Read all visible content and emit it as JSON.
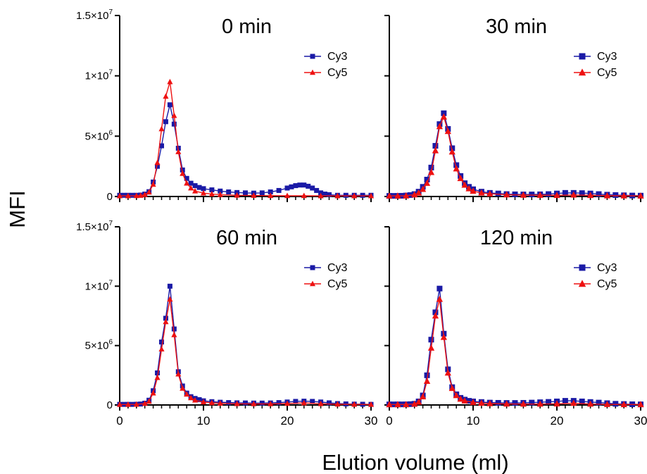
{
  "figure": {
    "ylabel": "MFI",
    "xlabel": "Elution volume (ml)"
  },
  "colors": {
    "cy3": "#1a1aa6",
    "cy5": "#ee1111",
    "axis": "#000000"
  },
  "chart_data": [
    {
      "type": "line",
      "panel": "top-left",
      "title": "0 min",
      "xlim": [
        0,
        30
      ],
      "ylim": [
        0,
        15000000
      ],
      "xticks": [
        "",
        "",
        "",
        ""
      ],
      "yticks": [
        "0",
        "5×10",
        "1×10",
        "1.5×10"
      ],
      "ytick_exponents": [
        "",
        "6",
        "7",
        "7"
      ],
      "legend": "top-right",
      "series": [
        {
          "name": "Cy3",
          "marker": "square",
          "x": [
            0,
            0.5,
            1,
            1.5,
            2,
            2.5,
            3,
            3.5,
            4,
            4.5,
            5,
            5.5,
            6,
            6.5,
            7,
            7.5,
            8,
            8.5,
            9,
            9.5,
            10,
            11,
            12,
            13,
            14,
            15,
            16,
            17,
            18,
            19,
            20,
            20.5,
            21,
            21.5,
            22,
            22.5,
            23,
            23.5,
            24,
            24.5,
            25,
            26,
            27,
            28,
            29,
            30
          ],
          "y": [
            100000,
            100000,
            100000,
            100000,
            100000,
            120000,
            200000,
            400000,
            1200000,
            2500000,
            4200000,
            6200000,
            7600000,
            6000000,
            4000000,
            2200000,
            1500000,
            1100000,
            900000,
            750000,
            650000,
            550000,
            450000,
            380000,
            330000,
            300000,
            280000,
            300000,
            380000,
            500000,
            700000,
            800000,
            900000,
            950000,
            950000,
            850000,
            700000,
            500000,
            300000,
            200000,
            150000,
            100000,
            100000,
            100000,
            100000,
            100000
          ]
        },
        {
          "name": "Cy5",
          "marker": "triangle",
          "x": [
            0,
            1,
            2,
            2.5,
            3,
            3.5,
            4,
            4.5,
            5,
            5.5,
            6,
            6.5,
            7,
            7.5,
            8,
            8.5,
            9,
            10,
            11,
            12,
            14,
            16,
            18,
            20,
            22,
            24,
            26,
            28,
            30
          ],
          "y": [
            50000,
            50000,
            60000,
            80000,
            150000,
            350000,
            1000000,
            2800000,
            5600000,
            8300000,
            9500000,
            6700000,
            3700000,
            1900000,
            1100000,
            700000,
            450000,
            280000,
            200000,
            150000,
            100000,
            80000,
            70000,
            60000,
            60000,
            50000,
            50000,
            50000,
            50000
          ]
        }
      ]
    },
    {
      "type": "line",
      "panel": "top-right",
      "title": "30 min",
      "xlim": [
        0,
        30
      ],
      "ylim": [
        0,
        15000000
      ],
      "xticks": [
        "",
        "",
        "",
        ""
      ],
      "yticks": [
        "",
        "",
        "",
        ""
      ],
      "ytick_exponents": [
        "",
        "",
        "",
        ""
      ],
      "legend": "top-right",
      "series": [
        {
          "name": "Cy3",
          "marker": "square",
          "x": [
            0,
            0.5,
            1,
            1.5,
            2,
            2.5,
            3,
            3.5,
            4,
            4.5,
            5,
            5.5,
            6,
            6.5,
            7,
            7.5,
            8,
            8.5,
            9,
            9.5,
            10,
            11,
            12,
            13,
            14,
            15,
            16,
            17,
            18,
            19,
            20,
            21,
            22,
            23,
            24,
            25,
            26,
            27,
            28,
            29,
            30
          ],
          "y": [
            50000,
            50000,
            50000,
            60000,
            80000,
            120000,
            200000,
            400000,
            800000,
            1400000,
            2400000,
            4200000,
            6000000,
            6900000,
            5600000,
            4000000,
            2600000,
            1700000,
            1100000,
            800000,
            600000,
            400000,
            300000,
            250000,
            200000,
            180000,
            170000,
            170000,
            180000,
            200000,
            250000,
            300000,
            300000,
            280000,
            250000,
            200000,
            150000,
            120000,
            100000,
            80000,
            70000
          ]
        },
        {
          "name": "Cy5",
          "marker": "triangle",
          "x": [
            0,
            1,
            2,
            3,
            3.5,
            4,
            4.5,
            5,
            5.5,
            6,
            6.5,
            7,
            7.5,
            8,
            8.5,
            9,
            9.5,
            10,
            11,
            12,
            14,
            16,
            18,
            20,
            22,
            24,
            26,
            28,
            30
          ],
          "y": [
            50000,
            50000,
            60000,
            150000,
            300000,
            600000,
            1100000,
            2000000,
            3800000,
            5800000,
            6600000,
            5400000,
            3700000,
            2300000,
            1500000,
            950000,
            650000,
            450000,
            300000,
            220000,
            150000,
            120000,
            110000,
            100000,
            130000,
            100000,
            70000,
            60000,
            50000
          ]
        }
      ]
    },
    {
      "type": "line",
      "panel": "bottom-left",
      "title": "60 min",
      "xlim": [
        0,
        30
      ],
      "ylim": [
        0,
        15000000
      ],
      "xticks": [
        "0",
        "10",
        "20",
        "30"
      ],
      "yticks": [
        "0",
        "5×10",
        "1×10",
        "1.5×10"
      ],
      "ytick_exponents": [
        "",
        "6",
        "7",
        "7"
      ],
      "legend": "top-right",
      "series": [
        {
          "name": "Cy3",
          "marker": "square",
          "x": [
            0,
            0.5,
            1,
            1.5,
            2,
            2.5,
            3,
            3.5,
            4,
            4.5,
            5,
            5.5,
            6,
            6.5,
            7,
            7.5,
            8,
            8.5,
            9,
            9.5,
            10,
            11,
            12,
            13,
            14,
            15,
            16,
            17,
            18,
            19,
            20,
            21,
            22,
            23,
            24,
            25,
            26,
            27,
            28,
            29,
            30
          ],
          "y": [
            50000,
            50000,
            50000,
            50000,
            60000,
            80000,
            150000,
            400000,
            1200000,
            2700000,
            5300000,
            7300000,
            10000000,
            6400000,
            2800000,
            1600000,
            1000000,
            700000,
            550000,
            450000,
            350000,
            280000,
            230000,
            200000,
            180000,
            170000,
            160000,
            160000,
            170000,
            200000,
            250000,
            300000,
            320000,
            300000,
            250000,
            180000,
            120000,
            90000,
            70000,
            60000,
            50000
          ]
        },
        {
          "name": "Cy5",
          "marker": "triangle",
          "x": [
            0,
            1,
            2,
            3,
            3.5,
            4,
            4.5,
            5,
            5.5,
            6,
            6.5,
            7,
            7.5,
            8,
            8.5,
            9,
            10,
            11,
            12,
            14,
            16,
            18,
            20,
            22,
            24,
            26,
            28,
            30
          ],
          "y": [
            40000,
            40000,
            50000,
            120000,
            300000,
            1000000,
            2300000,
            4700000,
            7000000,
            8900000,
            5900000,
            2600000,
            1400000,
            900000,
            600000,
            400000,
            250000,
            180000,
            140000,
            100000,
            90000,
            90000,
            120000,
            170000,
            100000,
            60000,
            50000,
            40000
          ]
        }
      ]
    },
    {
      "type": "line",
      "panel": "bottom-right",
      "title": "120 min",
      "xlim": [
        0,
        30
      ],
      "ylim": [
        0,
        15000000
      ],
      "xticks": [
        "0",
        "10",
        "20",
        "30"
      ],
      "yticks": [
        "",
        "",
        "",
        ""
      ],
      "ytick_exponents": [
        "",
        "",
        "",
        ""
      ],
      "legend": "top-right",
      "series": [
        {
          "name": "Cy3",
          "marker": "square",
          "x": [
            0,
            0.5,
            1,
            1.5,
            2,
            2.5,
            3,
            3.5,
            4,
            4.5,
            5,
            5.5,
            6,
            6.5,
            7,
            7.5,
            8,
            8.5,
            9,
            9.5,
            10,
            11,
            12,
            13,
            14,
            15,
            16,
            17,
            18,
            19,
            20,
            21,
            22,
            23,
            24,
            25,
            26,
            27,
            28,
            29,
            30
          ],
          "y": [
            50000,
            50000,
            50000,
            50000,
            50000,
            70000,
            100000,
            300000,
            800000,
            2500000,
            5500000,
            7800000,
            9800000,
            6000000,
            3000000,
            1500000,
            900000,
            600000,
            450000,
            350000,
            300000,
            250000,
            200000,
            180000,
            170000,
            170000,
            180000,
            200000,
            230000,
            260000,
            300000,
            350000,
            350000,
            300000,
            250000,
            200000,
            150000,
            100000,
            80000,
            60000,
            50000
          ]
        },
        {
          "name": "Cy5",
          "marker": "triangle",
          "x": [
            0,
            1,
            2,
            3,
            3.5,
            4,
            4.5,
            5,
            5.5,
            6,
            6.5,
            7,
            7.5,
            8,
            8.5,
            9,
            10,
            11,
            12,
            14,
            16,
            18,
            20,
            22,
            24,
            26,
            28,
            30
          ],
          "y": [
            40000,
            40000,
            40000,
            80000,
            250000,
            700000,
            2000000,
            4800000,
            7500000,
            8900000,
            5700000,
            2700000,
            1400000,
            800000,
            500000,
            350000,
            220000,
            160000,
            120000,
            90000,
            80000,
            80000,
            100000,
            150000,
            80000,
            50000,
            40000,
            40000
          ]
        }
      ]
    }
  ]
}
